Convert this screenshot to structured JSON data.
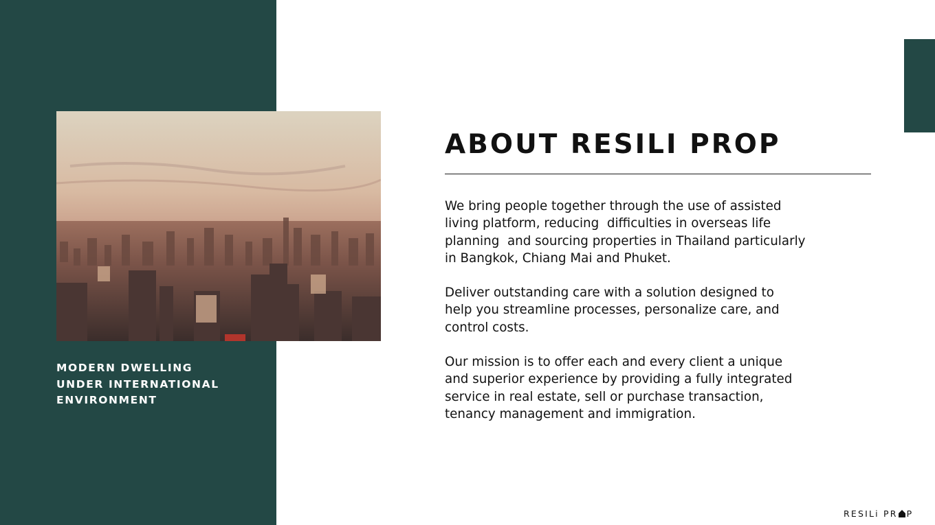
{
  "colors": {
    "panel_green": "#234845",
    "text_dark": "#111111",
    "background": "#ffffff"
  },
  "left_panel": {
    "tagline_lines": [
      "MODERN DWELLING",
      "UNDER INTERNATIONAL",
      "ENVIRONMENT"
    ]
  },
  "main": {
    "heading": "ABOUT RESILI PROP",
    "paragraphs": [
      {
        "lines": [
          "We bring people together through the use of assisted",
          "living platform, reducing  difficulties in overseas life",
          "planning  and sourcing properties in Thailand particularly",
          "in Bangkok, Chiang Mai and Phuket."
        ]
      },
      {
        "lines": [
          "Deliver outstanding care with a solution designed to",
          "help you streamline processes, personalize care, and",
          "control costs."
        ]
      },
      {
        "lines": [
          "Our mission is to offer each and every client a unique",
          "and superior experience by providing a fully integrated",
          "service in real estate, sell or purchase transaction,",
          "tenancy management and immigration."
        ]
      }
    ]
  },
  "footer": {
    "logo_left": "RESILi PR",
    "logo_right": "P"
  }
}
